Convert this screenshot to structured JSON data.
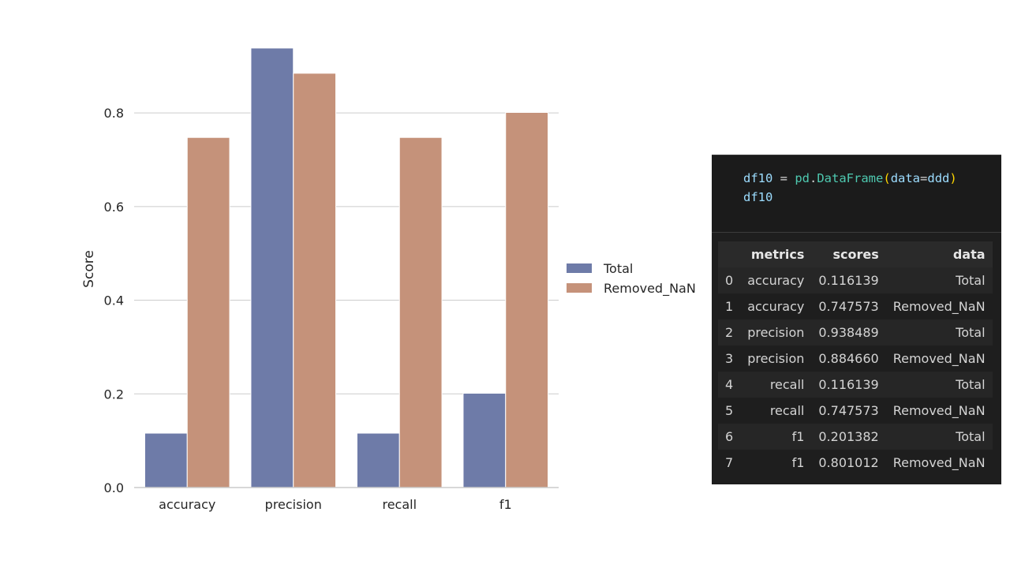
{
  "chart_data": {
    "type": "bar",
    "categories": [
      "accuracy",
      "precision",
      "recall",
      "f1"
    ],
    "series": [
      {
        "name": "Total",
        "values": [
          0.116139,
          0.938489,
          0.116139,
          0.201382
        ],
        "color": "#6e7ba8"
      },
      {
        "name": "Removed_NaN",
        "values": [
          0.747573,
          0.88466,
          0.747573,
          0.801012
        ],
        "color": "#c5927a"
      }
    ],
    "title": "",
    "xlabel": "",
    "ylabel": "Score",
    "ylim": [
      0,
      0.94
    ],
    "yticks": [
      0.0,
      0.2,
      0.4,
      0.6,
      0.8
    ],
    "ytick_labels": [
      "0.0",
      "0.2",
      "0.4",
      "0.6",
      "0.8"
    ],
    "grid": "horizontal",
    "legend": "right, outside"
  },
  "notebook": {
    "code": {
      "line1": {
        "var": "df10",
        "eq": " = ",
        "mod": "pd",
        "dot": ".",
        "cls": "DataFrame",
        "open": "(",
        "arg": "data",
        "eq2": "=",
        "val": "ddd",
        "close": ")"
      },
      "line2": "df10"
    },
    "table": {
      "columns": [
        "",
        "metrics",
        "scores",
        "data"
      ],
      "rows": [
        [
          "0",
          "accuracy",
          "0.116139",
          "Total"
        ],
        [
          "1",
          "accuracy",
          "0.747573",
          "Removed_NaN"
        ],
        [
          "2",
          "precision",
          "0.938489",
          "Total"
        ],
        [
          "3",
          "precision",
          "0.884660",
          "Removed_NaN"
        ],
        [
          "4",
          "recall",
          "0.116139",
          "Total"
        ],
        [
          "5",
          "recall",
          "0.747573",
          "Removed_NaN"
        ],
        [
          "6",
          "f1",
          "0.201382",
          "Total"
        ],
        [
          "7",
          "f1",
          "0.801012",
          "Removed_NaN"
        ]
      ]
    }
  }
}
